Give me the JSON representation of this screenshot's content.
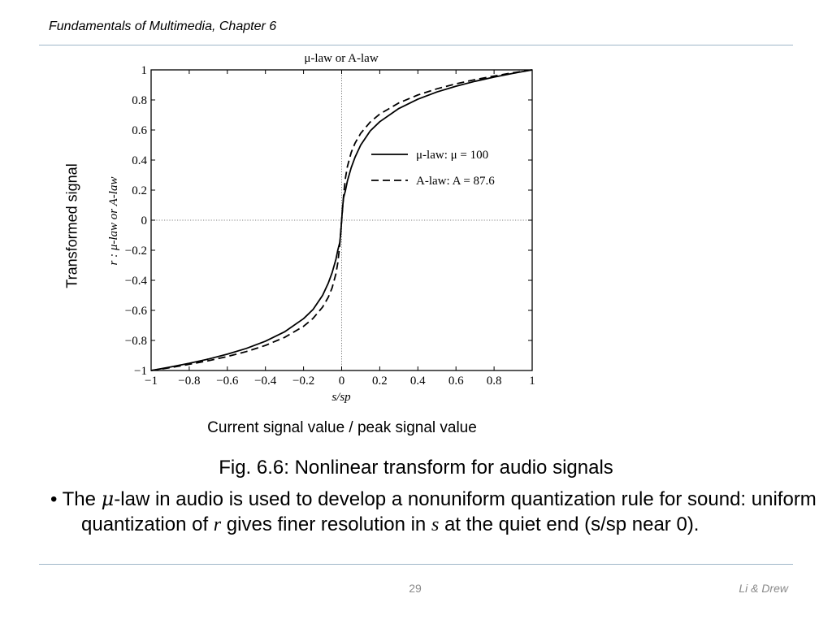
{
  "header": {
    "title": "Fundamentals of Multimedia, Chapter 6"
  },
  "slide": {
    "side_label": "Transformed signal",
    "x_caption": "Current signal value / peak signal value",
    "fig_caption": "Fig. 6.6: Nonlinear transform for audio signals",
    "bullet": {
      "marker": "•",
      "text_a": "The ",
      "mu": "μ",
      "text_b": "-law in audio is used to develop a nonuniform quantization rule for sound: uniform quantization of ",
      "r": "r",
      "text_c": " gives finer resolution in ",
      "s": "s",
      "text_d": " at the quiet end (s/sp near 0)."
    },
    "page_number": "29",
    "authors": "Li & Drew"
  },
  "chart_data": {
    "type": "line",
    "title": "μ-law or A-law",
    "xlabel": "s/sp",
    "ylabel": "r : μ-law or A-law",
    "xlim": [
      -1,
      1
    ],
    "ylim": [
      -1,
      1
    ],
    "x_ticks": [
      "−1",
      "−0.8",
      "−0.6",
      "−0.4",
      "−0.2",
      "0",
      "0.2",
      "0.4",
      "0.6",
      "0.8",
      "1"
    ],
    "y_ticks": [
      "−1",
      "−0.8",
      "−0.6",
      "−0.4",
      "−0.2",
      "0",
      "0.2",
      "0.4",
      "0.6",
      "0.8",
      "1"
    ],
    "reference_lines": {
      "x": 0,
      "y": 0,
      "style": "dotted"
    },
    "legend_position": "right-middle",
    "series": [
      {
        "name": "μ-law: μ = 100",
        "style": "solid",
        "x": [
          -1,
          -0.9,
          -0.8,
          -0.7,
          -0.6,
          -0.5,
          -0.4,
          -0.3,
          -0.2,
          -0.15,
          -0.1,
          -0.07,
          -0.05,
          -0.03,
          -0.02,
          -0.01,
          -0.005,
          0,
          0.005,
          0.01,
          0.02,
          0.03,
          0.05,
          0.07,
          0.1,
          0.15,
          0.2,
          0.3,
          0.4,
          0.5,
          0.6,
          0.7,
          0.8,
          0.9,
          1
        ],
        "y": [
          -1,
          -0.977,
          -0.952,
          -0.924,
          -0.891,
          -0.853,
          -0.805,
          -0.743,
          -0.655,
          -0.594,
          -0.5,
          -0.418,
          -0.349,
          -0.26,
          -0.198,
          -0.15,
          -0.087,
          0,
          0.087,
          0.15,
          0.198,
          0.26,
          0.349,
          0.418,
          0.5,
          0.594,
          0.655,
          0.743,
          0.805,
          0.853,
          0.891,
          0.924,
          0.952,
          0.977,
          1
        ]
      },
      {
        "name": "A-law: A = 87.6",
        "style": "dashed",
        "x": [
          -1,
          -0.9,
          -0.8,
          -0.7,
          -0.6,
          -0.5,
          -0.4,
          -0.3,
          -0.2,
          -0.15,
          -0.1,
          -0.07,
          -0.05,
          -0.03,
          -0.02,
          -0.0114,
          -0.005,
          0,
          0.005,
          0.0114,
          0.02,
          0.03,
          0.05,
          0.07,
          0.1,
          0.15,
          0.2,
          0.3,
          0.4,
          0.5,
          0.6,
          0.7,
          0.8,
          0.9,
          1
        ],
        "y": [
          -1,
          -0.981,
          -0.959,
          -0.935,
          -0.907,
          -0.874,
          -0.833,
          -0.78,
          -0.706,
          -0.653,
          -0.578,
          -0.512,
          -0.45,
          -0.356,
          -0.281,
          -0.183,
          -0.08,
          0,
          0.08,
          0.183,
          0.281,
          0.356,
          0.45,
          0.512,
          0.578,
          0.653,
          0.706,
          0.78,
          0.833,
          0.874,
          0.907,
          0.935,
          0.959,
          0.981,
          1
        ]
      }
    ]
  }
}
